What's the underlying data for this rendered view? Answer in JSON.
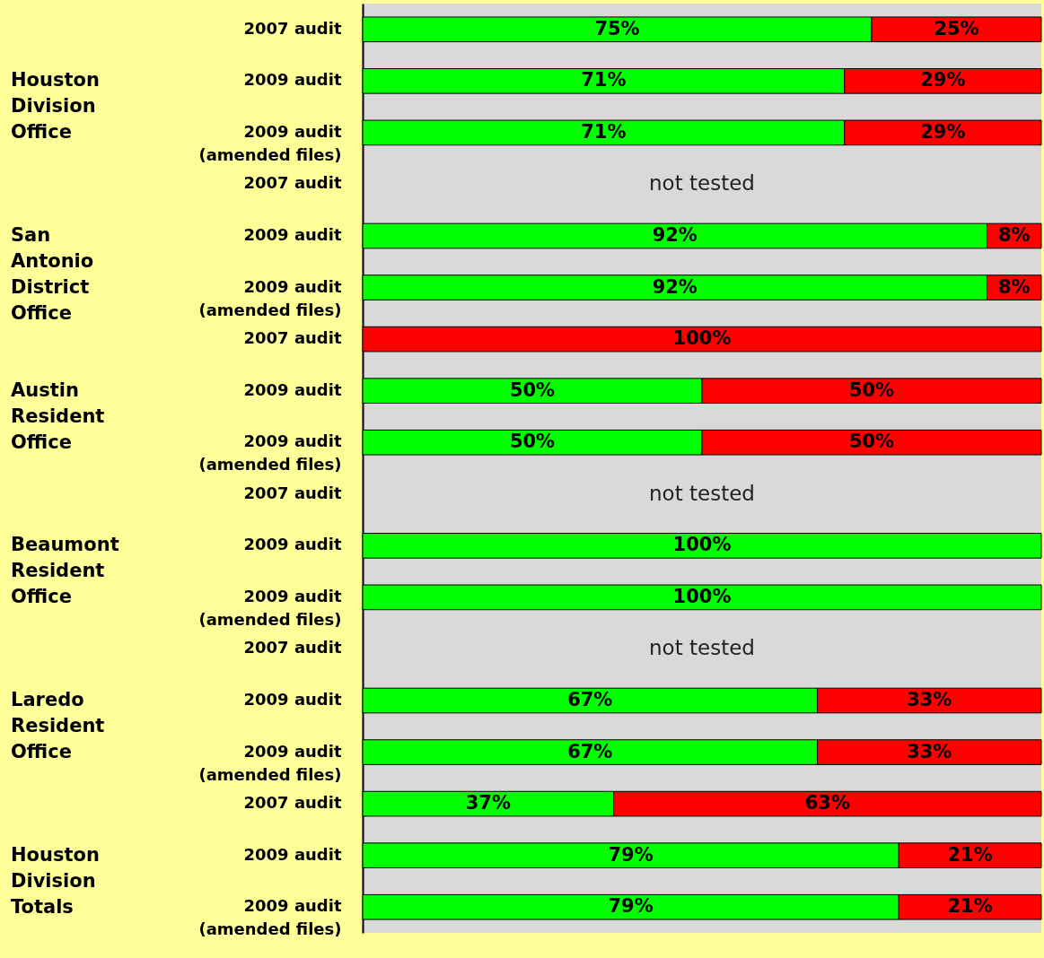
{
  "chart_data": {
    "type": "bar",
    "orientation": "horizontal",
    "stacked": true,
    "legend": false,
    "categories": [
      "2007 audit",
      "2009 audit",
      "2009 audit\n(amended files)",
      "2007 audit",
      "2009 audit",
      "2009 audit\n(amended files)",
      "2007 audit",
      "2009 audit",
      "2009 audit\n(amended files)",
      "2007 audit",
      "2009 audit",
      "2009 audit\n(amended files)",
      "2007 audit",
      "2009 audit",
      "2009 audit\n(amended files)",
      "2007 audit",
      "2009 audit",
      "2009 audit\n(amended files)"
    ],
    "xlim": [
      0,
      100
    ],
    "series": [
      {
        "color": "#00ff00",
        "values": [
          75,
          71,
          71,
          null,
          92,
          92,
          null,
          50,
          50,
          null,
          100,
          100,
          null,
          67,
          67,
          37,
          79,
          79
        ],
        "value_labels": [
          "75%",
          "71%",
          "71%",
          null,
          "92%",
          "92%",
          null,
          "50%",
          "50%",
          null,
          "100%",
          "100%",
          null,
          "67%",
          "67%",
          "37%",
          "79%",
          "79%"
        ]
      },
      {
        "color": "#ff0000",
        "values": [
          25,
          29,
          29,
          null,
          8,
          8,
          100,
          50,
          50,
          null,
          null,
          null,
          null,
          33,
          33,
          63,
          21,
          21
        ],
        "value_labels": [
          "25%",
          "29%",
          "29%",
          null,
          "8%",
          "8%",
          "100%",
          "50%",
          "50%",
          null,
          null,
          null,
          null,
          "33%",
          "33%",
          "63%",
          "21%",
          "21%"
        ]
      }
    ],
    "annotations": [
      "Houston\nDivision\nOffice",
      "San\nAntonio\nDistrict\nOffice",
      "Austin\nResident\nOffice",
      "Beaumont\nResident\nOffice",
      "Laredo\nResident\nOffice",
      "Houston\nDivision\nTotals",
      "not tested",
      "not tested",
      "not tested"
    ]
  }
}
